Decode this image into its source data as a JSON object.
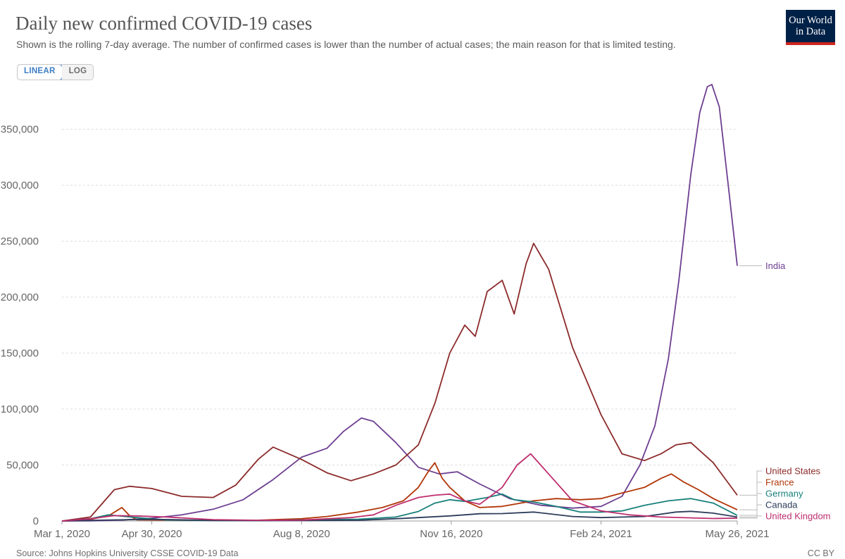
{
  "header": {
    "title": "Daily new confirmed COVID-19 cases",
    "subtitle": "Shown is the rolling 7-day average. The number of confirmed cases is lower than the number of actual cases; the main reason for that is limited testing.",
    "logo_line1": "Our World",
    "logo_line2": "in Data"
  },
  "scale_toggle": {
    "linear_label": "LINEAR",
    "log_label": "LOG",
    "selected": "LINEAR"
  },
  "footer": {
    "source": "Source: Johns Hopkins University CSSE COVID-19 Data",
    "license": "CC BY"
  },
  "chart_data": {
    "type": "line",
    "title": "Daily new confirmed COVID-19 cases",
    "xlabel": "",
    "ylabel": "",
    "x_tick_labels": [
      "Mar 1, 2020",
      "Apr 30, 2020",
      "Aug 8, 2020",
      "Nov 16, 2020",
      "Feb 24, 2021",
      "May 26, 2021"
    ],
    "x_tick_dates": [
      "2020-03-01",
      "2020-04-30",
      "2020-08-08",
      "2020-11-16",
      "2021-02-24",
      "2021-05-26"
    ],
    "xlim": [
      "2020-03-01",
      "2021-05-26"
    ],
    "y_ticks": [
      0,
      50000,
      100000,
      150000,
      200000,
      250000,
      300000,
      350000
    ],
    "y_tick_labels": [
      "0",
      "50,000",
      "100,000",
      "150,000",
      "200,000",
      "250,000",
      "300,000",
      "350,000"
    ],
    "ylim": [
      0,
      390000
    ],
    "grid": "horizontal dashed",
    "legend_placement": "right (end-of-line labels)",
    "series": [
      {
        "name": "India",
        "color": "#6d3e91",
        "x": [
          "2020-03-01",
          "2020-03-20",
          "2020-04-10",
          "2020-04-30",
          "2020-05-20",
          "2020-06-10",
          "2020-06-30",
          "2020-07-20",
          "2020-08-08",
          "2020-08-25",
          "2020-09-05",
          "2020-09-17",
          "2020-09-25",
          "2020-10-10",
          "2020-10-25",
          "2020-11-08",
          "2020-11-20",
          "2020-12-05",
          "2020-12-25",
          "2021-01-15",
          "2021-02-05",
          "2021-02-24",
          "2021-03-10",
          "2021-03-22",
          "2021-04-01",
          "2021-04-10",
          "2021-04-17",
          "2021-04-25",
          "2021-05-01",
          "2021-05-06",
          "2021-05-09",
          "2021-05-14",
          "2021-05-20",
          "2021-05-26"
        ],
        "y": [
          0,
          100,
          800,
          2500,
          5500,
          10500,
          19000,
          37000,
          57000,
          65000,
          80000,
          92000,
          89000,
          70000,
          48000,
          42000,
          44000,
          33000,
          20000,
          14000,
          11500,
          13000,
          22000,
          50000,
          85000,
          145000,
          215000,
          310000,
          365000,
          388000,
          390000,
          370000,
          300000,
          228000
        ]
      },
      {
        "name": "United States",
        "color": "#8c2a2a",
        "x": [
          "2020-03-01",
          "2020-03-20",
          "2020-04-05",
          "2020-04-15",
          "2020-04-30",
          "2020-05-20",
          "2020-06-10",
          "2020-06-25",
          "2020-07-10",
          "2020-07-20",
          "2020-08-08",
          "2020-08-25",
          "2020-09-10",
          "2020-09-25",
          "2020-10-10",
          "2020-10-25",
          "2020-11-05",
          "2020-11-15",
          "2020-11-25",
          "2020-12-02",
          "2020-12-10",
          "2020-12-20",
          "2020-12-28",
          "2021-01-05",
          "2021-01-10",
          "2021-01-20",
          "2021-02-05",
          "2021-02-24",
          "2021-03-10",
          "2021-03-25",
          "2021-04-05",
          "2021-04-15",
          "2021-04-25",
          "2021-05-10",
          "2021-05-26"
        ],
        "y": [
          0,
          3500,
          28000,
          31000,
          29000,
          22000,
          21000,
          32000,
          55000,
          66000,
          55000,
          43000,
          36000,
          42000,
          50000,
          68000,
          105000,
          150000,
          175000,
          165000,
          205000,
          215000,
          185000,
          230000,
          248000,
          225000,
          155000,
          95000,
          60000,
          54000,
          60000,
          68000,
          70000,
          52000,
          23000
        ]
      },
      {
        "name": "France",
        "color": "#b13507",
        "x": [
          "2020-03-01",
          "2020-03-20",
          "2020-04-01",
          "2020-04-10",
          "2020-04-15",
          "2020-04-20",
          "2020-05-10",
          "2020-06-10",
          "2020-07-10",
          "2020-08-08",
          "2020-08-25",
          "2020-09-15",
          "2020-10-01",
          "2020-10-15",
          "2020-10-25",
          "2020-11-01",
          "2020-11-05",
          "2020-11-10",
          "2020-11-15",
          "2020-11-25",
          "2020-12-05",
          "2020-12-20",
          "2021-01-10",
          "2021-01-25",
          "2021-02-10",
          "2021-02-24",
          "2021-03-10",
          "2021-03-25",
          "2021-04-05",
          "2021-04-12",
          "2021-04-20",
          "2021-04-30",
          "2021-05-10",
          "2021-05-26"
        ],
        "y": [
          0,
          1500,
          4500,
          12000,
          5000,
          1000,
          800,
          500,
          700,
          2000,
          4000,
          8000,
          12000,
          18000,
          30000,
          45000,
          52000,
          38000,
          30000,
          18000,
          12000,
          13000,
          18000,
          20000,
          19000,
          20000,
          25000,
          30000,
          38000,
          42000,
          35000,
          28000,
          20000,
          10000
        ]
      },
      {
        "name": "Germany",
        "color": "#18807b",
        "x": [
          "2020-03-01",
          "2020-03-20",
          "2020-04-01",
          "2020-04-20",
          "2020-05-10",
          "2020-06-10",
          "2020-07-10",
          "2020-08-08",
          "2020-09-15",
          "2020-10-10",
          "2020-10-25",
          "2020-11-05",
          "2020-11-15",
          "2020-11-25",
          "2020-12-10",
          "2020-12-20",
          "2020-12-28",
          "2021-01-10",
          "2021-01-25",
          "2021-02-10",
          "2021-02-24",
          "2021-03-10",
          "2021-03-25",
          "2021-04-10",
          "2021-04-25",
          "2021-05-10",
          "2021-05-26"
        ],
        "y": [
          0,
          2000,
          5500,
          3000,
          900,
          400,
          400,
          1000,
          1600,
          3500,
          8500,
          16000,
          19000,
          17500,
          21000,
          24000,
          19000,
          17000,
          13000,
          8000,
          8000,
          9000,
          14000,
          18000,
          20000,
          16000,
          5000
        ]
      },
      {
        "name": "Canada",
        "color": "#2c3c5a",
        "x": [
          "2020-03-01",
          "2020-04-01",
          "2020-04-30",
          "2020-06-10",
          "2020-07-10",
          "2020-08-08",
          "2020-09-15",
          "2020-10-15",
          "2020-11-15",
          "2020-12-05",
          "2020-12-20",
          "2021-01-10",
          "2021-02-05",
          "2021-02-24",
          "2021-03-25",
          "2021-04-15",
          "2021-04-25",
          "2021-05-10",
          "2021-05-26"
        ],
        "y": [
          0,
          900,
          1500,
          500,
          300,
          350,
          600,
          2300,
          4500,
          6500,
          6600,
          8000,
          4000,
          3000,
          4000,
          8000,
          8600,
          7000,
          3500
        ]
      },
      {
        "name": "United Kingdom",
        "color": "#be2d6e",
        "x": [
          "2020-03-01",
          "2020-03-20",
          "2020-04-05",
          "2020-04-20",
          "2020-05-10",
          "2020-06-10",
          "2020-07-10",
          "2020-08-08",
          "2020-09-10",
          "2020-09-25",
          "2020-10-10",
          "2020-10-25",
          "2020-11-05",
          "2020-11-15",
          "2020-11-25",
          "2020-12-05",
          "2020-12-20",
          "2020-12-30",
          "2021-01-08",
          "2021-01-20",
          "2021-02-05",
          "2021-02-24",
          "2021-03-15",
          "2021-04-05",
          "2021-05-10",
          "2021-05-26"
        ],
        "y": [
          0,
          2000,
          4800,
          4500,
          3500,
          1200,
          600,
          800,
          3000,
          5500,
          14000,
          21000,
          23000,
          24000,
          18000,
          15000,
          30000,
          50000,
          60000,
          42000,
          18000,
          9000,
          5500,
          3500,
          2200,
          2500
        ]
      }
    ]
  }
}
